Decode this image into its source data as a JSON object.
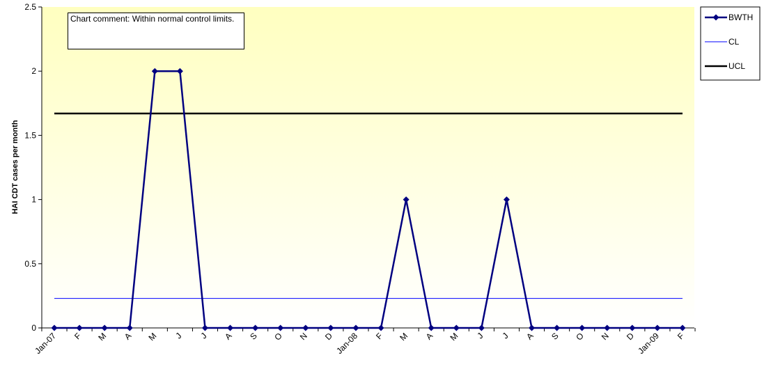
{
  "chart_data": {
    "type": "line",
    "ylabel": "HAI CDT cases per month",
    "ylim": [
      0,
      2.5
    ],
    "yticks": [
      "0",
      "0.5",
      "1",
      "1.5",
      "2",
      "2.5"
    ],
    "categories": [
      "Jan-07",
      "F",
      "M",
      "A",
      "M",
      "J",
      "J",
      "A",
      "S",
      "O",
      "N",
      "D",
      "Jan-08",
      "F",
      "M",
      "A",
      "M",
      "J",
      "J",
      "A",
      "S",
      "O",
      "N",
      "D",
      "Jan-09",
      "F"
    ],
    "series": [
      {
        "name": "BWTH",
        "values": [
          0,
          0,
          0,
          0,
          2,
          2,
          0,
          0,
          0,
          0,
          0,
          0,
          0,
          0,
          1,
          0,
          0,
          0,
          1,
          0,
          0,
          0,
          0,
          0,
          0,
          0
        ],
        "color": "#000080"
      },
      {
        "name": "CL",
        "value": 0.23,
        "color": "#0000ff"
      },
      {
        "name": "UCL",
        "value": 1.67,
        "color": "#000000"
      }
    ],
    "annotation": "Chart comment:  Within normal control limits.",
    "legend_position": "right",
    "plot_background": [
      "#ffffff",
      "#ffffc0"
    ],
    "grid": false
  }
}
